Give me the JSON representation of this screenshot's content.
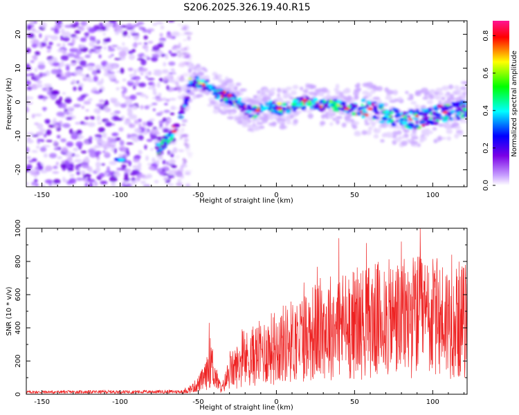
{
  "title": "S206.2025.326.19.40.R15",
  "chart_data": [
    {
      "type": "heatmap",
      "name": "spectrogram",
      "xlabel": "Height of straight line (km)",
      "ylabel": "Frequency (Hz)",
      "xlim": [
        -160,
        122
      ],
      "ylim": [
        -25,
        24
      ],
      "xticks": [
        -150,
        -100,
        -50,
        0,
        50,
        100
      ],
      "yticks": [
        -20,
        -10,
        0,
        10,
        20
      ],
      "colorbar": {
        "label": "Normalized spectral amplitude",
        "range": [
          0.0,
          0.88
        ],
        "ticks": [
          0.0,
          0.2,
          0.4,
          0.6,
          0.8
        ],
        "colors": [
          "#ffffff",
          "#7a00e6",
          "#0000ff",
          "#00ffff",
          "#00ff00",
          "#ffff00",
          "#ff0000",
          "#ff1493"
        ]
      },
      "ridge": {
        "x": [
          -75,
          -70,
          -65,
          -60,
          -57,
          -55,
          -50,
          -45,
          -40,
          -35,
          -30,
          -25,
          -20,
          -15,
          -10,
          -5,
          0,
          5,
          10,
          20,
          30,
          40,
          50,
          60,
          70,
          80,
          90,
          100,
          110,
          120
        ],
        "y": [
          -14,
          -11,
          -8,
          -3,
          2,
          6,
          6,
          5,
          3,
          2,
          1,
          0,
          -2,
          -3,
          -2,
          -1,
          -2,
          -2,
          -1,
          0,
          -1,
          -1,
          -2,
          -2,
          -4,
          -5,
          -5,
          -4,
          -3,
          -2
        ]
      },
      "noise_region": [
        -160,
        -65
      ],
      "hot_spot": {
        "x": -100,
        "y": -17
      }
    },
    {
      "type": "line",
      "name": "snr",
      "xlabel": "Height of straight line (km)",
      "ylabel": "SNR (10 * v/v)",
      "xlim": [
        -160,
        122
      ],
      "ylim": [
        0,
        1000
      ],
      "xticks": [
        -150,
        -100,
        -50,
        0,
        50,
        100
      ],
      "yticks": [
        0,
        200,
        400,
        600,
        800,
        1000
      ],
      "color": "#ee2222",
      "envelope": {
        "x": [
          -160,
          -60,
          -55,
          -50,
          -45,
          -42,
          -38,
          -35,
          -30,
          -20,
          -10,
          0,
          10,
          20,
          30,
          40,
          50,
          60,
          70,
          80,
          90,
          100,
          110,
          122
        ],
        "y": [
          10,
          12,
          30,
          60,
          110,
          200,
          80,
          30,
          130,
          210,
          250,
          290,
          320,
          360,
          400,
          420,
          420,
          440,
          450,
          460,
          470,
          460,
          450,
          440
        ]
      },
      "peaks": [
        {
          "x": -43,
          "y": 430
        },
        {
          "x": 40,
          "y": 940
        },
        {
          "x": 80,
          "y": 920
        },
        {
          "x": 92,
          "y": 1000
        }
      ]
    }
  ]
}
